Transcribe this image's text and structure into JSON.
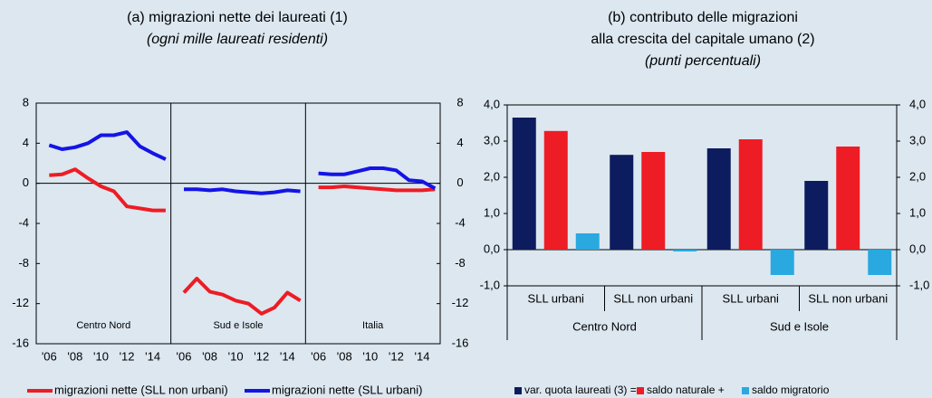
{
  "chart_data": [
    {
      "type": "line",
      "title": "(a) migrazioni nette dei laureati (1)",
      "subtitle": "(ogni mille laureati residenti)",
      "panels": [
        "Centro Nord",
        "Sud e Isole",
        "Italia"
      ],
      "x": [
        2006,
        2007,
        2008,
        2009,
        2010,
        2011,
        2012,
        2013,
        2014,
        2015
      ],
      "xlim": [
        2005,
        2015.4
      ],
      "xticks": [
        {
          "value": 2006,
          "label": "'06"
        },
        {
          "value": 2008,
          "label": "'08"
        },
        {
          "value": 2010,
          "label": "'10"
        },
        {
          "value": 2012,
          "label": "'12"
        },
        {
          "value": 2014,
          "label": "'14"
        }
      ],
      "ylim": [
        -16,
        8
      ],
      "yticks": [
        8,
        4,
        0,
        -4,
        -8,
        -12,
        -16
      ],
      "y2lim": [
        -16,
        8
      ],
      "y2ticks": [
        8,
        4,
        0,
        -4,
        -8,
        -12,
        -16
      ],
      "series": [
        {
          "name": "migrazioni nette (SLL non urbani)",
          "color": "#ee1c24",
          "values": [
            [
              0.8,
              0.9,
              1.4,
              0.5,
              -0.3,
              -0.8,
              -2.3,
              -2.5,
              -2.7,
              -2.7
            ],
            [
              -10.9,
              -9.5,
              -10.8,
              -11.1,
              -11.7,
              -12.0,
              -13.0,
              -12.4,
              -10.9,
              -11.7
            ],
            [
              -0.4,
              -0.4,
              -0.3,
              -0.4,
              -0.5,
              -0.6,
              -0.7,
              -0.7,
              -0.7,
              -0.6
            ]
          ]
        },
        {
          "name": "migrazioni nette (SLL urbani)",
          "color": "#1414e6",
          "values": [
            [
              3.8,
              3.4,
              3.6,
              4.0,
              4.8,
              4.8,
              5.1,
              3.7,
              3.0,
              2.4
            ],
            [
              -0.6,
              -0.6,
              -0.7,
              -0.6,
              -0.8,
              -0.9,
              -1.0,
              -0.9,
              -0.7,
              -0.8
            ],
            [
              1.0,
              0.9,
              0.9,
              1.2,
              1.5,
              1.5,
              1.3,
              0.3,
              0.2,
              -0.5
            ]
          ]
        }
      ]
    },
    {
      "type": "bar",
      "title": [
        "(b) contributo delle migrazioni",
        "alla crescita del capitale umano (2)"
      ],
      "subtitle": "(punti percentuali)",
      "categories": [
        "SLL urbani",
        "SLL non urbani",
        "SLL urbani",
        "SLL non urbani"
      ],
      "groups": [
        "Centro Nord",
        "Sud e Isole"
      ],
      "ylim": [
        -1,
        4
      ],
      "yticks": [
        {
          "value": 4,
          "label": "4,0"
        },
        {
          "value": 3,
          "label": "3,0"
        },
        {
          "value": 2,
          "label": "2,0"
        },
        {
          "value": 1,
          "label": "1,0"
        },
        {
          "value": 0,
          "label": "0,0"
        },
        {
          "value": -1,
          "label": "-1,0"
        }
      ],
      "y2lim": [
        -1,
        4
      ],
      "y2ticks": [
        {
          "value": 4,
          "label": "4,0"
        },
        {
          "value": 3,
          "label": "3,0"
        },
        {
          "value": 2,
          "label": "2,0"
        },
        {
          "value": 1,
          "label": "1,0"
        },
        {
          "value": 0,
          "label": "0,0"
        },
        {
          "value": -1,
          "label": "-1,0"
        }
      ],
      "series": [
        {
          "name": "var. quota laureati (3) =",
          "color": "#0d1c5e",
          "values": [
            3.65,
            2.62,
            2.8,
            1.9
          ]
        },
        {
          "name": "saldo naturale +",
          "color": "#ee1c24",
          "values": [
            3.28,
            2.7,
            3.05,
            2.85
          ]
        },
        {
          "name": "saldo migratorio",
          "color": "#2aa8e0",
          "values": [
            0.45,
            -0.05,
            -0.7,
            -0.7
          ]
        }
      ]
    }
  ]
}
